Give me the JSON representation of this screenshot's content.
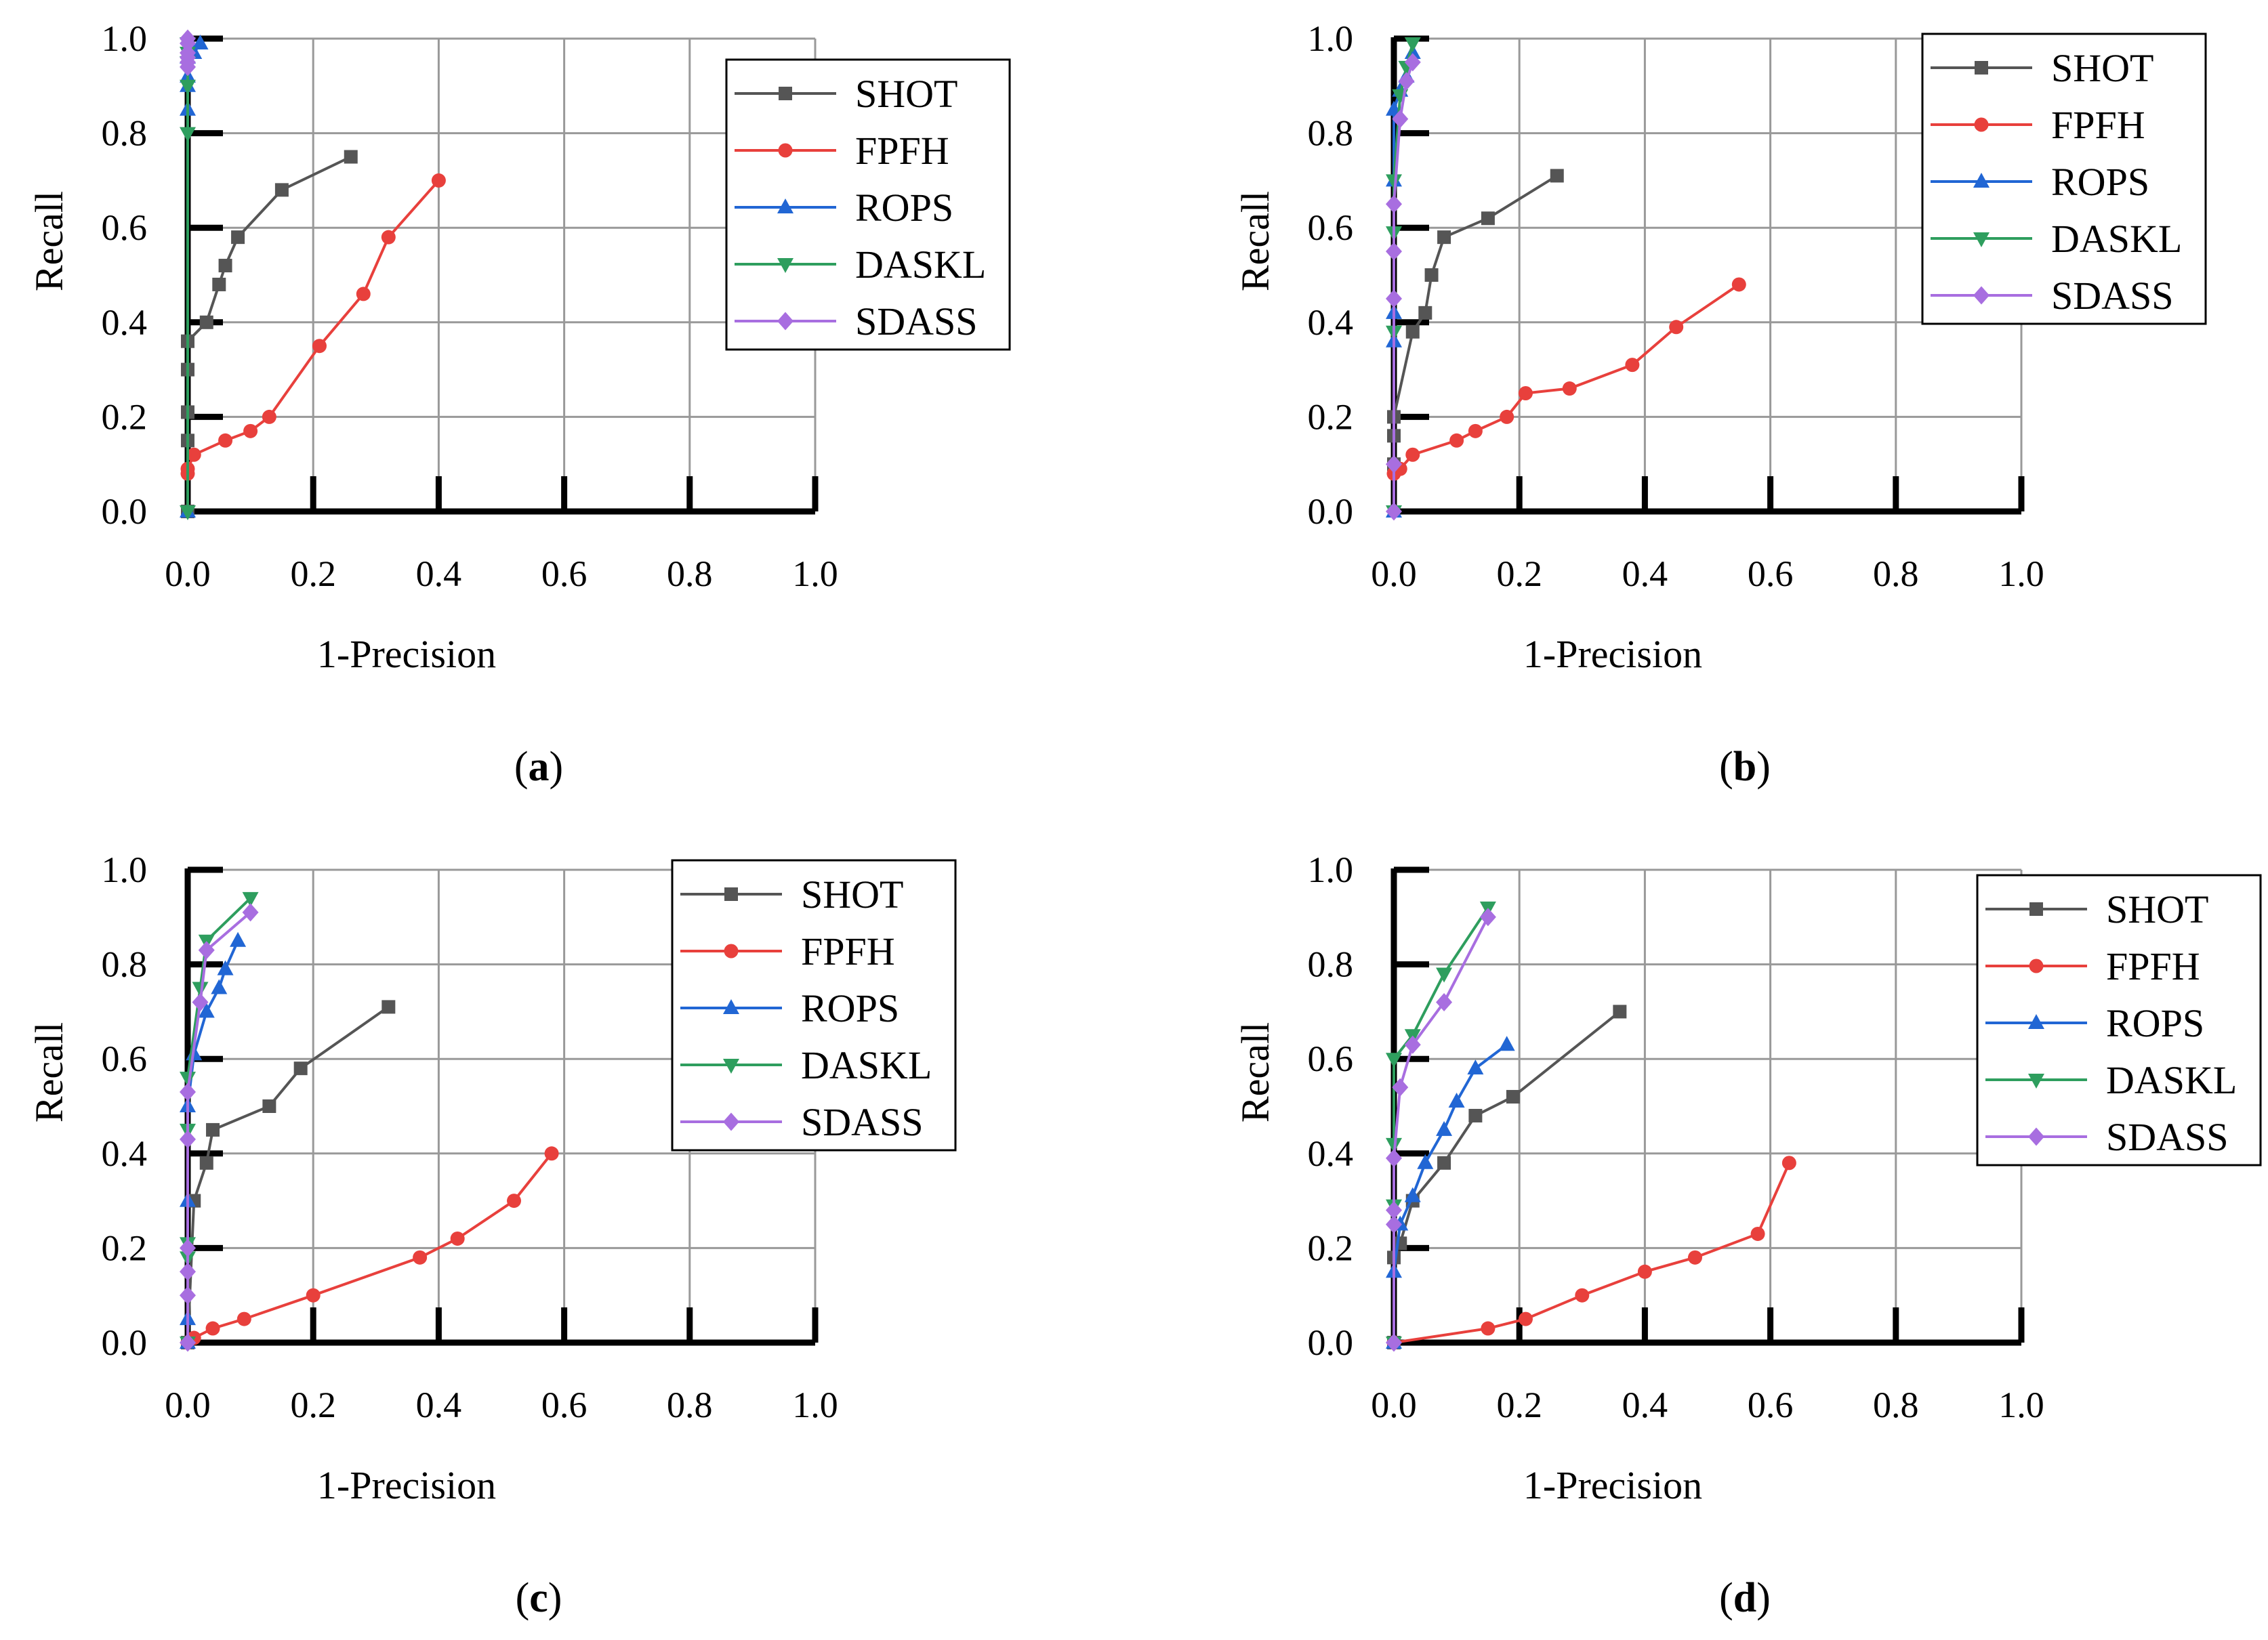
{
  "colors": {
    "SHOT": "#555555",
    "FPFH": "#e8403c",
    "ROPS": "#2166d4",
    "DASKL": "#2e9e5e",
    "SDASS": "#a86ee0",
    "grid": "#999999",
    "axis": "#000000"
  },
  "markers": {
    "SHOT": "square",
    "FPFH": "circle",
    "ROPS": "triangle-up",
    "DASKL": "triangle-down",
    "SDASS": "diamond"
  },
  "chart_data": [
    {
      "id": "a",
      "type": "line",
      "caption": "a",
      "xlabel": "1-Precision",
      "ylabel": "Recall",
      "xlim": [
        0,
        1
      ],
      "ylim": [
        0,
        1
      ],
      "xticks": [
        "0.0",
        "0.2",
        "0.4",
        "0.6",
        "0.8",
        "1.0"
      ],
      "yticks": [
        "0.0",
        "0.2",
        "0.4",
        "0.6",
        "0.8",
        "1.0"
      ],
      "grid": true,
      "legend_position": "top-right",
      "series": [
        {
          "name": "SHOT",
          "x": [
            0,
            0,
            0,
            0,
            0,
            0.03,
            0.05,
            0.06,
            0.08,
            0.15,
            0.26
          ],
          "y": [
            0.0,
            0.15,
            0.21,
            0.3,
            0.36,
            0.4,
            0.48,
            0.52,
            0.58,
            0.68,
            0.75
          ]
        },
        {
          "name": "FPFH",
          "x": [
            0,
            0,
            0.01,
            0.06,
            0.1,
            0.13,
            0.21,
            0.28,
            0.32,
            0.4
          ],
          "y": [
            0.08,
            0.09,
            0.12,
            0.15,
            0.17,
            0.2,
            0.35,
            0.46,
            0.58,
            0.7
          ]
        },
        {
          "name": "ROPS",
          "x": [
            0,
            0,
            0,
            0,
            0,
            0.01,
            0.02
          ],
          "y": [
            0.0,
            0.85,
            0.9,
            0.92,
            0.96,
            0.97,
            0.99
          ]
        },
        {
          "name": "DASKL",
          "x": [
            0,
            0,
            0,
            0,
            0,
            0
          ],
          "y": [
            0.0,
            0.8,
            0.9,
            0.95,
            0.97,
            0.99
          ]
        },
        {
          "name": "SDASS",
          "x": [
            0,
            0,
            0,
            0,
            0,
            0
          ],
          "y": [
            0.94,
            0.95,
            0.96,
            0.97,
            0.99,
            1.0
          ]
        }
      ]
    },
    {
      "id": "b",
      "type": "line",
      "caption": "b",
      "xlabel": "1-Precision",
      "ylabel": "Recall",
      "xlim": [
        0,
        1
      ],
      "ylim": [
        0,
        1
      ],
      "xticks": [
        "0.0",
        "0.2",
        "0.4",
        "0.6",
        "0.8",
        "1.0"
      ],
      "yticks": [
        "0.0",
        "0.2",
        "0.4",
        "0.6",
        "0.8",
        "1.0"
      ],
      "grid": true,
      "legend_position": "top-right",
      "series": [
        {
          "name": "SHOT",
          "x": [
            0,
            0,
            0,
            0.03,
            0.05,
            0.06,
            0.08,
            0.15,
            0.26
          ],
          "y": [
            0.1,
            0.16,
            0.2,
            0.38,
            0.42,
            0.5,
            0.58,
            0.62,
            0.71
          ]
        },
        {
          "name": "FPFH",
          "x": [
            0,
            0.01,
            0.03,
            0.1,
            0.13,
            0.18,
            0.21,
            0.28,
            0.38,
            0.45,
            0.55
          ],
          "y": [
            0.08,
            0.09,
            0.12,
            0.15,
            0.17,
            0.2,
            0.25,
            0.26,
            0.31,
            0.39,
            0.48
          ]
        },
        {
          "name": "ROPS",
          "x": [
            0,
            0,
            0,
            0,
            0,
            0.01,
            0.02,
            0.03
          ],
          "y": [
            0.0,
            0.36,
            0.42,
            0.7,
            0.85,
            0.89,
            0.92,
            0.97
          ]
        },
        {
          "name": "DASKL",
          "x": [
            0,
            0,
            0,
            0,
            0.01,
            0.02,
            0.03
          ],
          "y": [
            0.0,
            0.38,
            0.59,
            0.7,
            0.88,
            0.94,
            0.99
          ]
        },
        {
          "name": "SDASS",
          "x": [
            0,
            0,
            0,
            0,
            0,
            0.01,
            0.02,
            0.03
          ],
          "y": [
            0.0,
            0.1,
            0.45,
            0.55,
            0.65,
            0.83,
            0.91,
            0.95
          ]
        }
      ]
    },
    {
      "id": "c",
      "type": "line",
      "caption": "c",
      "xlabel": "1-Precision",
      "ylabel": "Recall",
      "xlim": [
        0,
        1
      ],
      "ylim": [
        0,
        1
      ],
      "xticks": [
        "0.0",
        "0.2",
        "0.4",
        "0.6",
        "0.8",
        "1.0"
      ],
      "yticks": [
        "0.0",
        "0.2",
        "0.4",
        "0.6",
        "0.8",
        "1.0"
      ],
      "grid": true,
      "legend_position": "top-right",
      "series": [
        {
          "name": "SHOT",
          "x": [
            0,
            0.01,
            0.03,
            0.04,
            0.13,
            0.18,
            0.32
          ],
          "y": [
            0.0,
            0.3,
            0.38,
            0.45,
            0.5,
            0.58,
            0.71
          ]
        },
        {
          "name": "FPFH",
          "x": [
            0,
            0.01,
            0.04,
            0.09,
            0.2,
            0.37,
            0.43,
            0.52,
            0.58
          ],
          "y": [
            0.0,
            0.01,
            0.03,
            0.05,
            0.1,
            0.18,
            0.22,
            0.3,
            0.4
          ]
        },
        {
          "name": "ROPS",
          "x": [
            0,
            0,
            0,
            0,
            0.01,
            0.03,
            0.05,
            0.06,
            0.08
          ],
          "y": [
            0.0,
            0.05,
            0.3,
            0.5,
            0.61,
            0.7,
            0.75,
            0.79,
            0.85
          ]
        },
        {
          "name": "DASKL",
          "x": [
            0,
            0,
            0,
            0,
            0,
            0.02,
            0.03,
            0.1
          ],
          "y": [
            0.0,
            0.18,
            0.21,
            0.45,
            0.56,
            0.75,
            0.85,
            0.94
          ]
        },
        {
          "name": "SDASS",
          "x": [
            0,
            0,
            0,
            0,
            0,
            0,
            0.02,
            0.03,
            0.1
          ],
          "y": [
            0.0,
            0.1,
            0.15,
            0.2,
            0.43,
            0.53,
            0.72,
            0.83,
            0.91
          ]
        }
      ]
    },
    {
      "id": "d",
      "type": "line",
      "caption": "d",
      "xlabel": "1-Precision",
      "ylabel": "Recall",
      "xlim": [
        0,
        1
      ],
      "ylim": [
        0,
        1
      ],
      "xticks": [
        "0.0",
        "0.2",
        "0.4",
        "0.6",
        "0.8",
        "1.0"
      ],
      "yticks": [
        "0.0",
        "0.2",
        "0.4",
        "0.6",
        "0.8",
        "1.0"
      ],
      "grid": true,
      "legend_position": "top-right",
      "series": [
        {
          "name": "SHOT",
          "x": [
            0,
            0,
            0.01,
            0.03,
            0.08,
            0.13,
            0.19,
            0.36
          ],
          "y": [
            0.0,
            0.18,
            0.21,
            0.3,
            0.38,
            0.48,
            0.52,
            0.7
          ]
        },
        {
          "name": "FPFH",
          "x": [
            0,
            0.15,
            0.21,
            0.3,
            0.4,
            0.48,
            0.58,
            0.63
          ],
          "y": [
            0.0,
            0.03,
            0.05,
            0.1,
            0.15,
            0.18,
            0.23,
            0.38
          ]
        },
        {
          "name": "ROPS",
          "x": [
            0,
            0,
            0.01,
            0.03,
            0.05,
            0.08,
            0.1,
            0.13,
            0.18
          ],
          "y": [
            0.0,
            0.15,
            0.25,
            0.31,
            0.38,
            0.45,
            0.51,
            0.58,
            0.63
          ]
        },
        {
          "name": "DASKL",
          "x": [
            0,
            0,
            0,
            0,
            0.03,
            0.08,
            0.15
          ],
          "y": [
            0.0,
            0.29,
            0.42,
            0.6,
            0.65,
            0.78,
            0.92
          ]
        },
        {
          "name": "SDASS",
          "x": [
            0,
            0,
            0,
            0,
            0.01,
            0.03,
            0.08,
            0.15
          ],
          "y": [
            0.0,
            0.25,
            0.28,
            0.39,
            0.54,
            0.63,
            0.72,
            0.9
          ]
        }
      ]
    }
  ]
}
